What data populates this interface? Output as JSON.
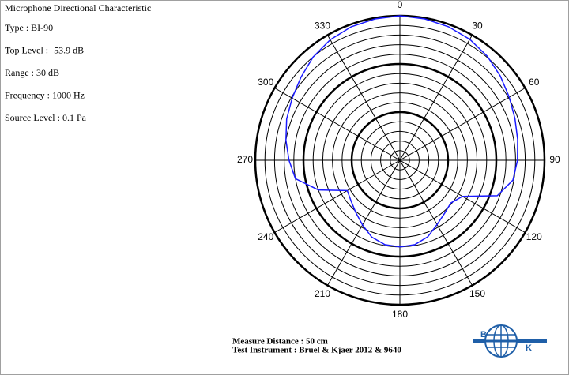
{
  "chart_data": {
    "type": "polar",
    "title": "Microphone Directional Characteristic",
    "info": [
      "Type : BI-90",
      "Top Level : -53.9 dB",
      "Range : 30 dB",
      "Frequency : 1000 Hz",
      "Source Level : 0.1 Pa"
    ],
    "footer": [
      "Measure Distance : 50 cm",
      "Test Instrument : Bruel & Kjaer 2012 & 9640"
    ],
    "logo": [
      "B",
      "K"
    ],
    "rlim": [
      -30,
      0
    ],
    "rticks": [
      -28,
      -26,
      -24,
      -22,
      -20,
      -18,
      -16,
      -14,
      -12,
      -10,
      -8,
      -6,
      -4,
      -2,
      0
    ],
    "thetaticks": [
      0,
      30,
      60,
      90,
      120,
      150,
      180,
      210,
      240,
      270,
      300,
      330
    ],
    "x": [
      0,
      10,
      20,
      30,
      40,
      50,
      60,
      70,
      80,
      90,
      100,
      110,
      120,
      130,
      140,
      150,
      160,
      170,
      180,
      190,
      200,
      210,
      220,
      230,
      240,
      250,
      260,
      270,
      280,
      290,
      300,
      310,
      320,
      330,
      340,
      350
    ],
    "values": [
      0,
      -0.2,
      -0.5,
      -1,
      -1.8,
      -2.8,
      -3.8,
      -4.6,
      -5.2,
      -5.6,
      -6.2,
      -8.5,
      -15,
      -16.2,
      -15.6,
      -14.6,
      -13.1,
      -12.2,
      -12,
      -12.2,
      -13,
      -14.5,
      -15.8,
      -16.8,
      -17.4,
      -12,
      -8,
      -7,
      -6,
      -5,
      -4.2,
      -3.2,
      -2,
      -1.1,
      -0.5,
      -0.2
    ],
    "color": "#1a1aff"
  }
}
